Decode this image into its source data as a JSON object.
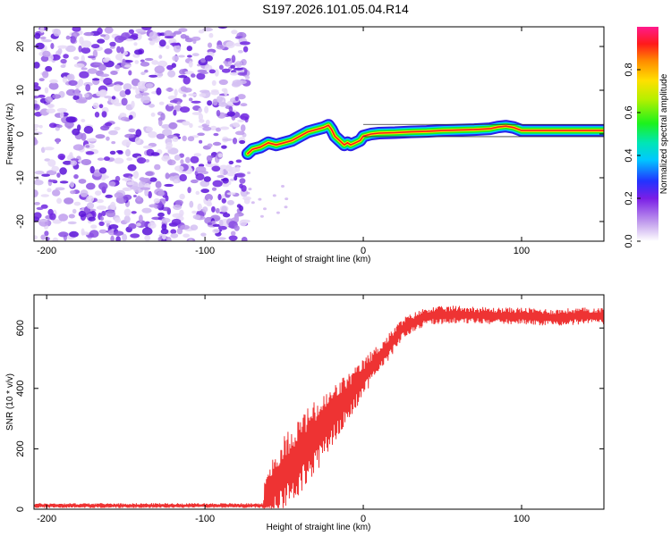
{
  "title": "S197.2026.101.05.04.R14",
  "chart_data": [
    {
      "type": "heatmap",
      "name": "spectrogram",
      "title": "",
      "xlabel": "Height of straight line (km)",
      "ylabel": "Frequency (Hz)",
      "xlim": [
        -208,
        152
      ],
      "ylim": [
        -24.5,
        24.5
      ],
      "xticks": [
        -200,
        -100,
        0,
        100
      ],
      "yticks": [
        -20,
        -10,
        0,
        10,
        20
      ],
      "noise_region": [
        -208,
        -73
      ],
      "ridge": {
        "description": "frequency of peak spectral amplitude vs height",
        "x": [
          -73,
          -70,
          -65,
          -60,
          -55,
          -50,
          -45,
          -40,
          -35,
          -30,
          -25,
          -22,
          -20,
          -18,
          -15,
          -12,
          -10,
          -8,
          -5,
          -2,
          0,
          5,
          10,
          20,
          30,
          40,
          50,
          60,
          70,
          80,
          85,
          90,
          95,
          100,
          110,
          120,
          130,
          140,
          152
        ],
        "y": [
          -4.5,
          -3.5,
          -3.0,
          -2.0,
          -2.5,
          -2.0,
          -1.5,
          -0.5,
          0.5,
          1.0,
          1.5,
          2.0,
          1.0,
          -0.5,
          -1.5,
          -2.5,
          -2.0,
          -2.5,
          -2.0,
          -1.5,
          -0.5,
          0.0,
          0.2,
          0.3,
          0.5,
          0.6,
          0.8,
          0.9,
          1.0,
          1.2,
          1.6,
          1.8,
          1.5,
          0.8,
          0.8,
          0.8,
          0.8,
          0.8,
          0.8
        ]
      },
      "colorbar": {
        "label": "Normalized spectral amplitude",
        "range": [
          0,
          1
        ],
        "ticks": [
          "0.0",
          "0.2",
          "0.4",
          "0.6",
          "0.8"
        ]
      }
    },
    {
      "type": "line",
      "name": "snr",
      "title": "",
      "xlabel": "Height of straight line (km)",
      "ylabel": "SNR (10 * v/v)",
      "xlim": [
        -208,
        152
      ],
      "ylim": [
        0,
        710
      ],
      "xticks": [
        -200,
        -100,
        0,
        100
      ],
      "yticks": [
        0,
        200,
        400,
        600
      ],
      "color": "#ee3333",
      "envelope": {
        "x": [
          -208,
          -63,
          -62,
          -55,
          -45,
          -35,
          -25,
          -15,
          -5,
          5,
          15,
          25,
          40,
          60,
          80,
          100,
          120,
          140,
          152
        ],
        "mean": [
          12,
          12,
          40,
          90,
          150,
          210,
          270,
          340,
          400,
          470,
          530,
          600,
          640,
          645,
          640,
          640,
          635,
          640,
          640
        ],
        "amplitude": [
          8,
          8,
          80,
          120,
          130,
          130,
          110,
          90,
          70,
          55,
          45,
          35,
          30,
          30,
          28,
          28,
          28,
          28,
          28
        ]
      }
    }
  ]
}
